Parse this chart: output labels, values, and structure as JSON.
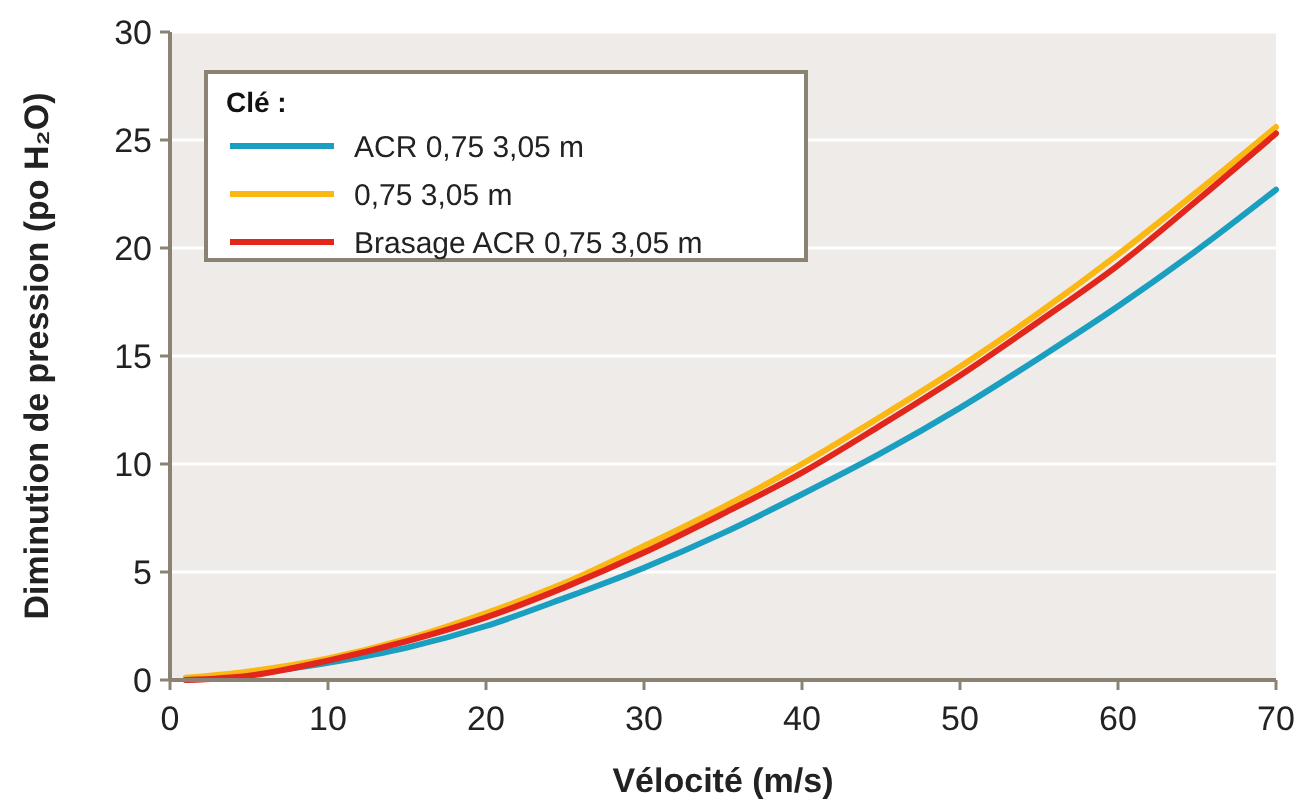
{
  "chart_data": {
    "type": "line",
    "xlabel": "Vélocité (m/s)",
    "ylabel": "Diminution de pression (po H₂O)",
    "legend_title": "Clé :",
    "legend": "top left",
    "grid": "y",
    "marker": "none",
    "line_style": "solid",
    "x": [
      1,
      5,
      10,
      15,
      20,
      25,
      30,
      35,
      40,
      45,
      50,
      55,
      60,
      65,
      70
    ],
    "xlim": [
      0,
      70
    ],
    "xticks": [
      0,
      10,
      20,
      30,
      40,
      50,
      60,
      70
    ],
    "ylim": [
      0,
      30
    ],
    "yticks": [
      0,
      5,
      10,
      15,
      20,
      25,
      30
    ],
    "series": [
      {
        "name": "ACR 0,75 3,05 m",
        "color": "#1a9fc0",
        "x": [
          1,
          10,
          15,
          20,
          25,
          30,
          35,
          40,
          45,
          50,
          55,
          60,
          65,
          70
        ],
        "values": [
          0,
          0.8,
          1.5,
          2.5,
          3.8,
          5.2,
          6.8,
          8.6,
          10.5,
          12.6,
          14.9,
          17.3,
          19.9,
          22.7
        ]
      },
      {
        "name": "0,75 3,05 m",
        "color": "#fbb813",
        "values": [
          0.1,
          0.4,
          1.0,
          1.9,
          3.1,
          4.5,
          6.2,
          8.0,
          10.0,
          12.2,
          14.5,
          17.0,
          19.7,
          22.6,
          25.6
        ]
      },
      {
        "name": "Brasage ACR 0,75 3,05 m",
        "color": "#e2261c",
        "values": [
          0,
          0.2,
          0.9,
          1.8,
          2.9,
          4.3,
          5.9,
          7.7,
          9.6,
          11.8,
          14.1,
          16.6,
          19.2,
          22.2,
          25.3
        ]
      }
    ]
  }
}
